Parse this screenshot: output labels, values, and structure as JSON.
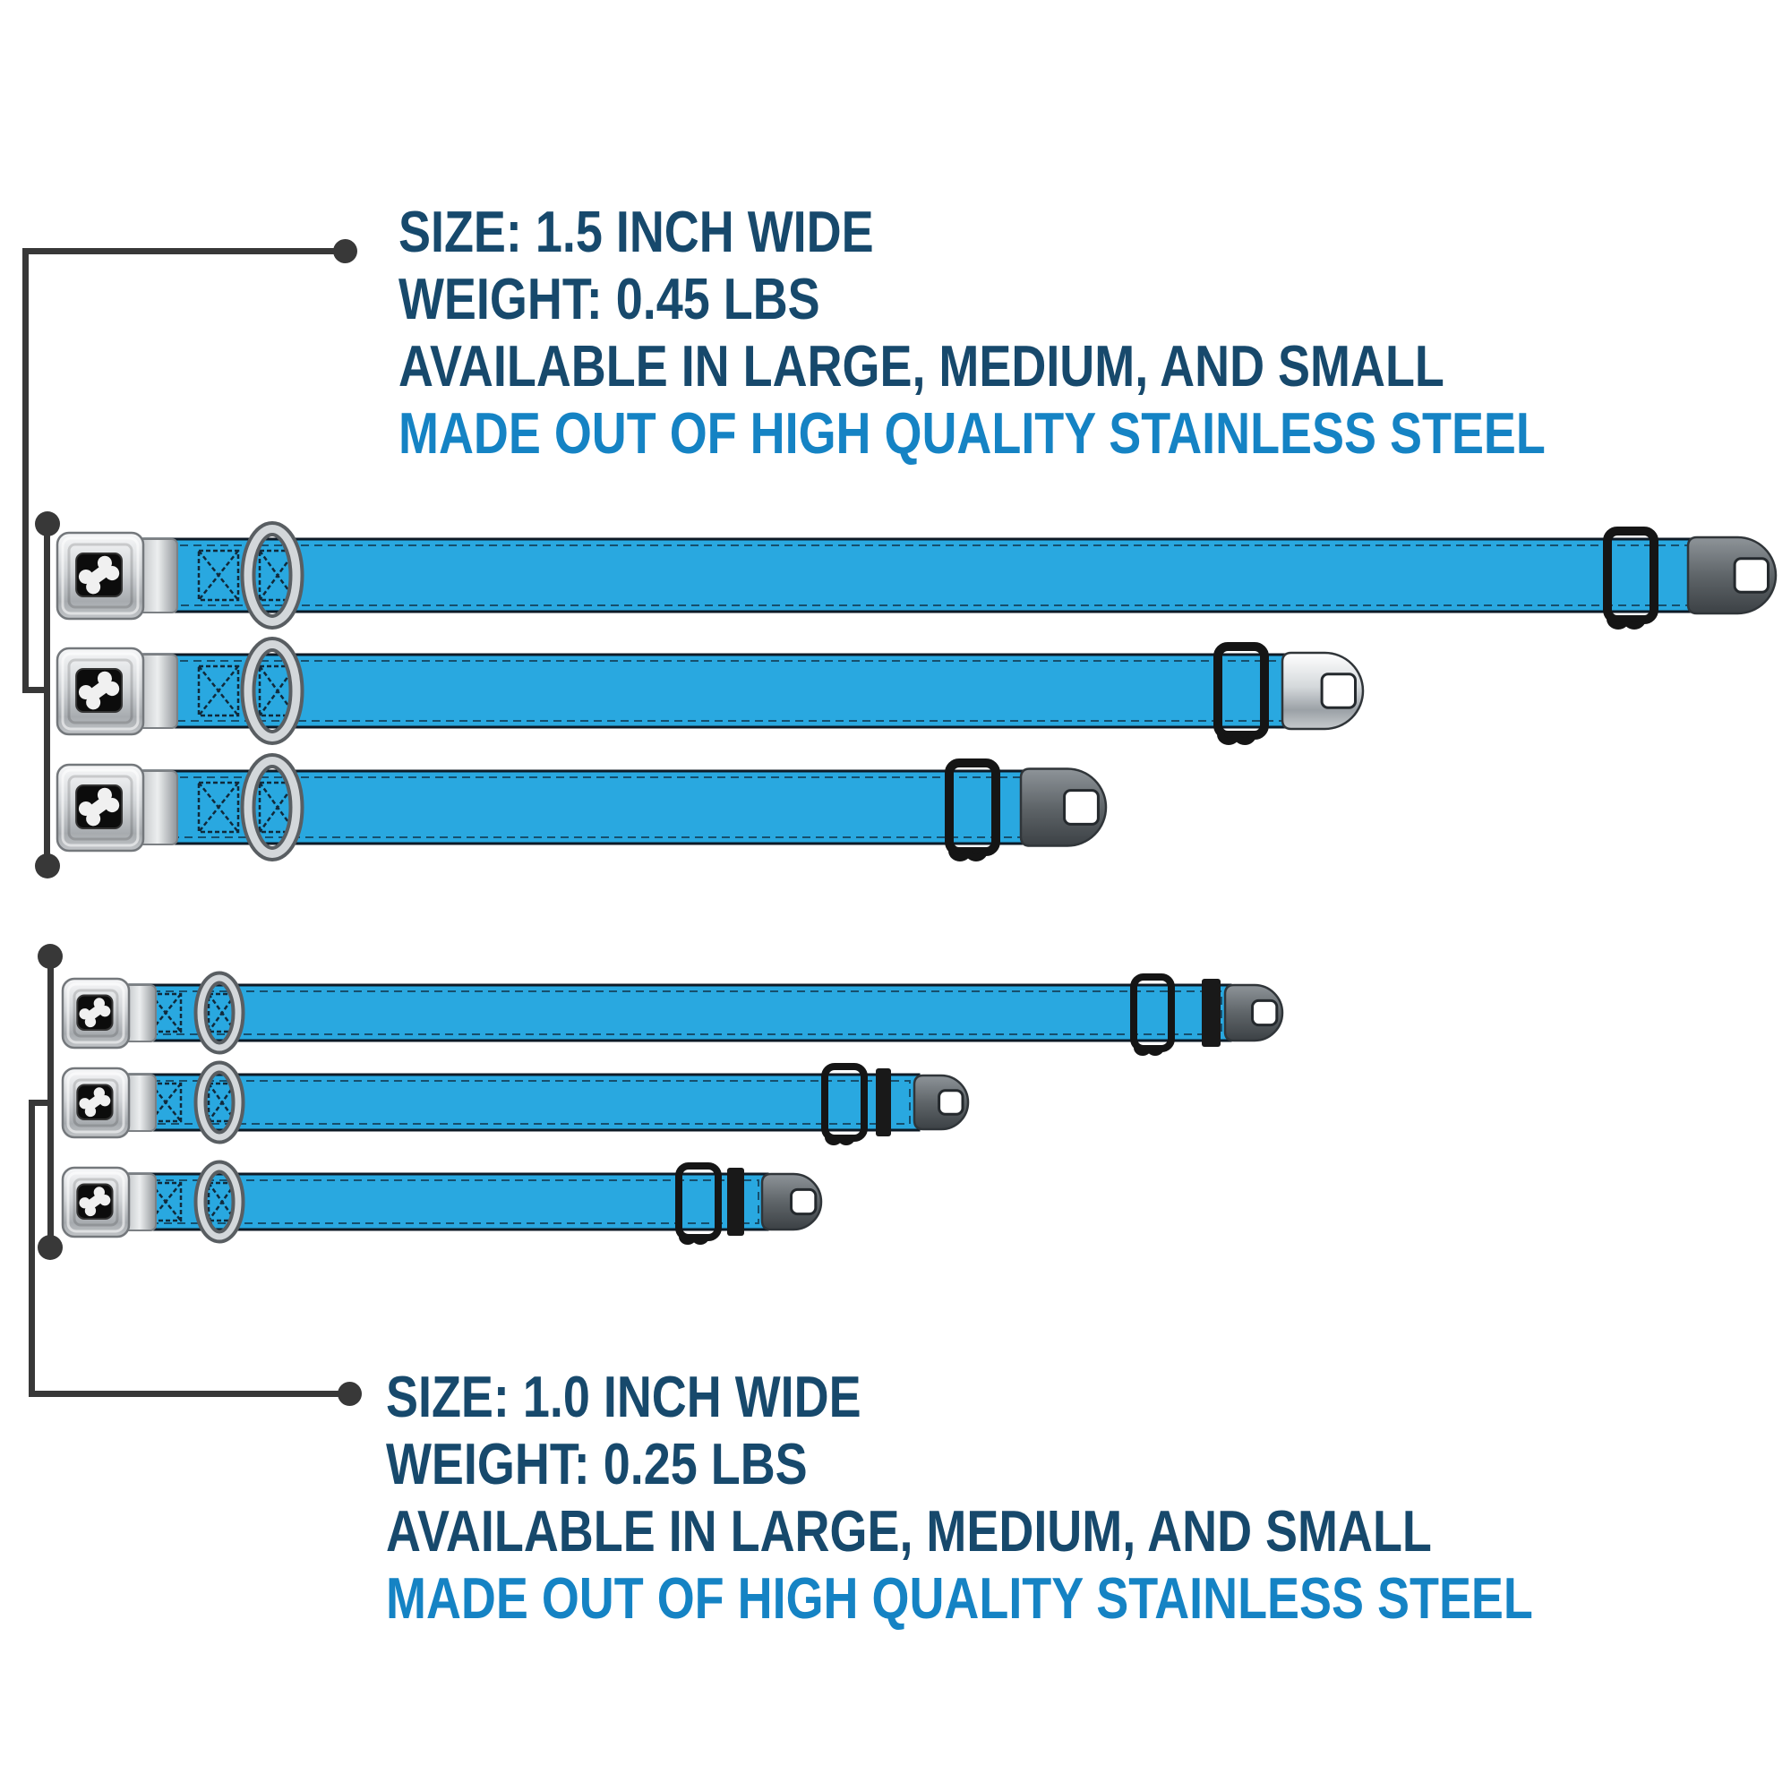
{
  "annotations": {
    "top": {
      "lines": [
        "SIZE: 1.5 INCH WIDE",
        "WEIGHT: 0.45 LBS",
        "AVAILABLE IN LARGE, MEDIUM, AND SMALL",
        "MADE OUT OF HIGH QUALITY STAINLESS STEEL"
      ]
    },
    "bottom": {
      "lines": [
        "SIZE: 1.0 INCH WIDE",
        "WEIGHT: 0.25 LBS",
        "AVAILABLE IN LARGE, MEDIUM, AND SMALL",
        "MADE OUT OF HIGH QUALITY STAINLESS STEEL"
      ]
    }
  },
  "collar_groups": [
    {
      "id": "1-5-inch-wide",
      "sizes": [
        "large",
        "medium",
        "small"
      ],
      "buckle_icon": "dog-bone"
    },
    {
      "id": "1-0-inch-wide",
      "sizes": [
        "large",
        "medium",
        "small"
      ],
      "buckle_icon": "dog-bone"
    }
  ],
  "colors": {
    "bg": "#ffffff",
    "navy": "#17496C",
    "accent": "#1583C4",
    "callout": "#383838",
    "collar_blue": "#29A8E0",
    "stitch_dark": "#0D1A26",
    "hardware_black": "#151515",
    "metal_silver": "#C9CDD1",
    "metal_gunmetal": "#54585C"
  }
}
